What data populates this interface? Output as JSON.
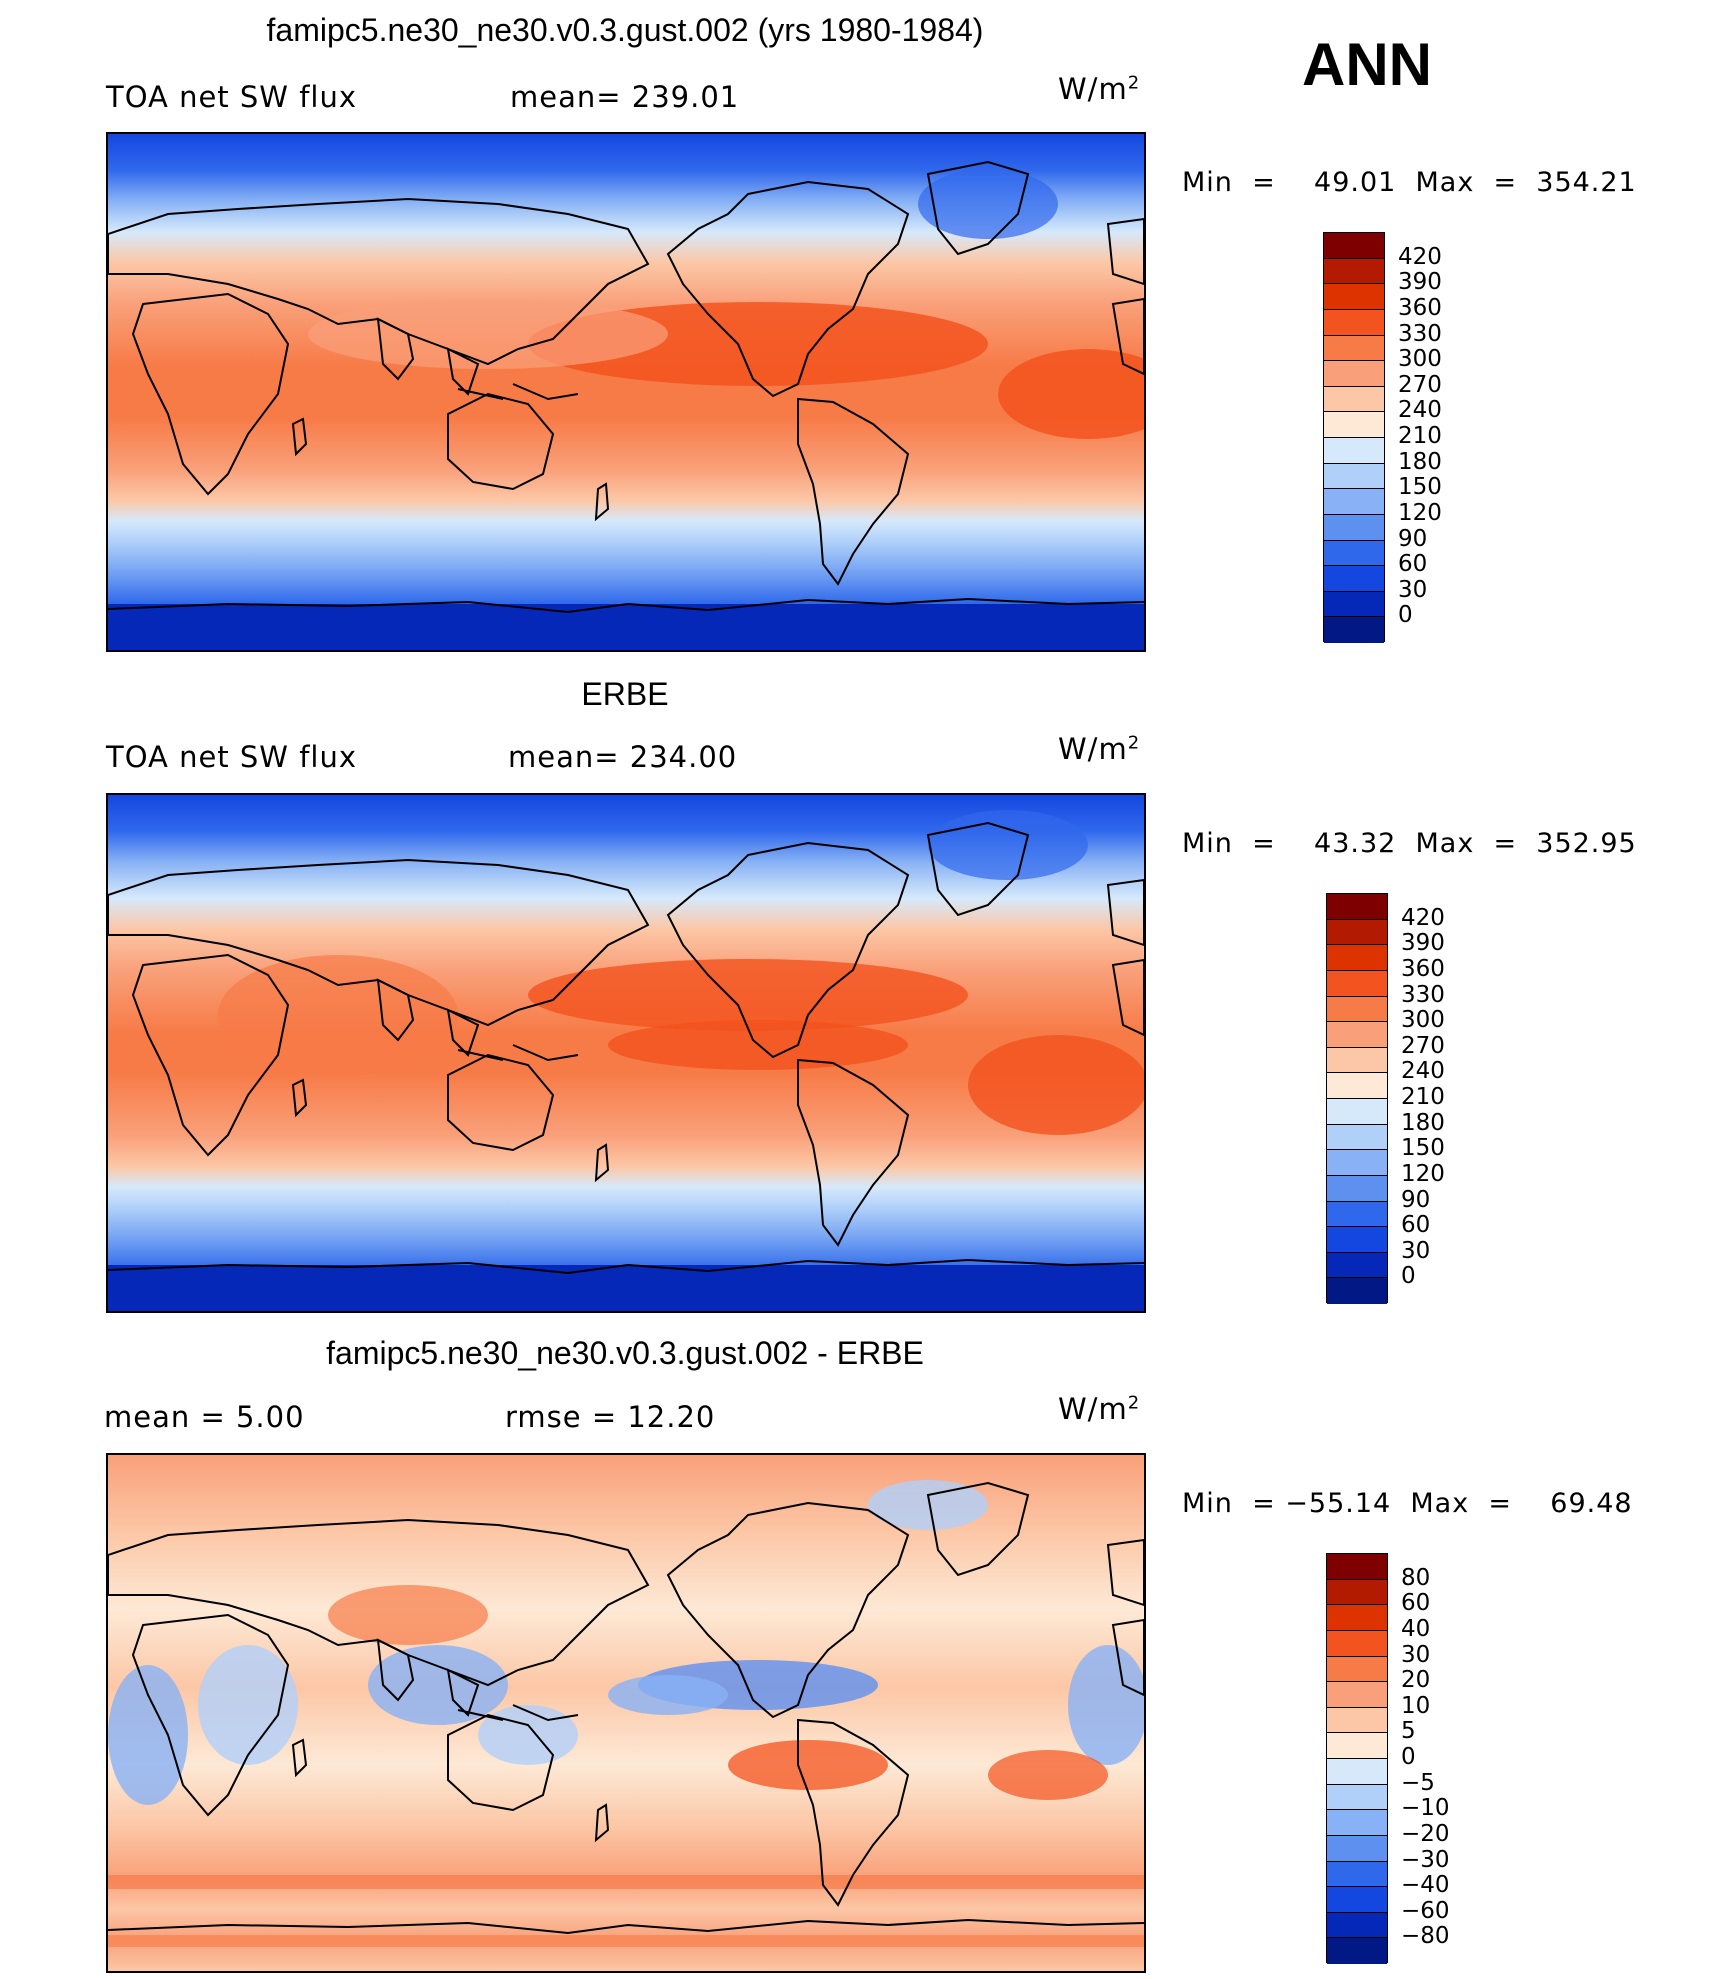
{
  "season": "ANN",
  "panels": [
    {
      "title": "famipc5.ne30_ne30.v0.3.gust.002 (yrs 1980-1984)",
      "left_label": "TOA net SW flux",
      "mid_label": "mean= 239.01",
      "units_base": "W/m",
      "units_exp": "2",
      "minmax": "Min  =    49.01  Max  =  354.21",
      "colorbar_levels": [
        "420",
        "390",
        "360",
        "330",
        "300",
        "270",
        "240",
        "210",
        "180",
        "150",
        "120",
        "90",
        "60",
        "30",
        "0"
      ]
    },
    {
      "title": "ERBE",
      "left_label": "TOA net SW flux",
      "mid_label": "mean= 234.00",
      "units_base": "W/m",
      "units_exp": "2",
      "minmax": "Min  =    43.32  Max  =  352.95",
      "colorbar_levels": [
        "420",
        "390",
        "360",
        "330",
        "300",
        "270",
        "240",
        "210",
        "180",
        "150",
        "120",
        "90",
        "60",
        "30",
        "0"
      ]
    },
    {
      "title": "famipc5.ne30_ne30.v0.3.gust.002 - ERBE",
      "left_label": "mean  =     5.00",
      "mid_label": "rmse  =    12.20",
      "units_base": "W/m",
      "units_exp": "2",
      "minmax": "Min  = −55.14  Max  =    69.48",
      "colorbar_levels": [
        "80",
        "60",
        "40",
        "30",
        "20",
        "10",
        "5",
        "0",
        "−5",
        "−10",
        "−20",
        "−30",
        "−40",
        "−60",
        "−80"
      ]
    }
  ],
  "colors": {
    "sequential": [
      "#7e0000",
      "#b21b00",
      "#dc3300",
      "#f3531e",
      "#f77b47",
      "#f9a07a",
      "#fcc7a6",
      "#fde9d6",
      "#d6e9fb",
      "#b0d0fa",
      "#88b2f5",
      "#5e90f0",
      "#3068ec",
      "#1447e0",
      "#0528b8",
      "#011885"
    ],
    "diverging": [
      "#7e0000",
      "#b21b00",
      "#dc3300",
      "#f3531e",
      "#f77b47",
      "#f9a07a",
      "#fcc7a6",
      "#fde9d6",
      "#d6e9fb",
      "#b0d0fa",
      "#88b2f5",
      "#5e90f0",
      "#3068ec",
      "#1447e0",
      "#0528b8",
      "#011885"
    ]
  }
}
